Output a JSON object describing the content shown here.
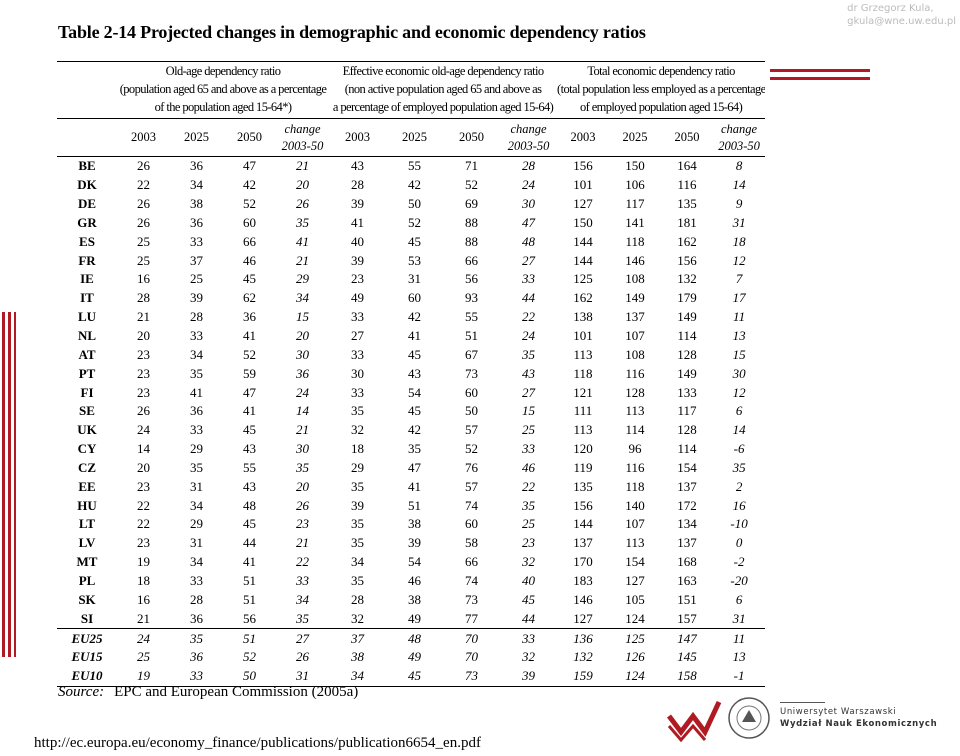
{
  "author": {
    "name": "dr Grzegorz Kula,",
    "email": "gkula@wne.uw.edu.pl"
  },
  "title": "Table 2-14 Projected changes in demographic and economic dependency ratios",
  "table": {
    "groups": [
      {
        "title": "Old-age dependency ratio",
        "note": [
          "(population aged 65 and above as a percentage",
          "of the population aged 15-64*)"
        ]
      },
      {
        "title": "Effective economic old-age dependency ratio",
        "note": [
          "(non active population aged 65 and above as",
          "a percentage of employed population aged 15-64)"
        ]
      },
      {
        "title": "Total economic dependency ratio",
        "note": [
          "(total population less employed as a percentage",
          "of employed population aged 15-64)"
        ]
      }
    ],
    "columns": [
      "2003",
      "2025",
      "2050",
      [
        "change",
        "2003-50"
      ]
    ],
    "rows": [
      [
        "BE",
        "26",
        "36",
        "47",
        "21",
        "43",
        "55",
        "71",
        "28",
        "156",
        "150",
        "164",
        "8"
      ],
      [
        "DK",
        "22",
        "34",
        "42",
        "20",
        "28",
        "42",
        "52",
        "24",
        "101",
        "106",
        "116",
        "14"
      ],
      [
        "DE",
        "26",
        "38",
        "52",
        "26",
        "39",
        "50",
        "69",
        "30",
        "127",
        "117",
        "135",
        "9"
      ],
      [
        "GR",
        "26",
        "36",
        "60",
        "35",
        "41",
        "52",
        "88",
        "47",
        "150",
        "141",
        "181",
        "31"
      ],
      [
        "ES",
        "25",
        "33",
        "66",
        "41",
        "40",
        "45",
        "88",
        "48",
        "144",
        "118",
        "162",
        "18"
      ],
      [
        "FR",
        "25",
        "37",
        "46",
        "21",
        "39",
        "53",
        "66",
        "27",
        "144",
        "146",
        "156",
        "12"
      ],
      [
        "IE",
        "16",
        "25",
        "45",
        "29",
        "23",
        "31",
        "56",
        "33",
        "125",
        "108",
        "132",
        "7"
      ],
      [
        "IT",
        "28",
        "39",
        "62",
        "34",
        "49",
        "60",
        "93",
        "44",
        "162",
        "149",
        "179",
        "17"
      ],
      [
        "LU",
        "21",
        "28",
        "36",
        "15",
        "33",
        "42",
        "55",
        "22",
        "138",
        "137",
        "149",
        "11"
      ],
      [
        "NL",
        "20",
        "33",
        "41",
        "20",
        "27",
        "41",
        "51",
        "24",
        "101",
        "107",
        "114",
        "13"
      ],
      [
        "AT",
        "23",
        "34",
        "52",
        "30",
        "33",
        "45",
        "67",
        "35",
        "113",
        "108",
        "128",
        "15"
      ],
      [
        "PT",
        "23",
        "35",
        "59",
        "36",
        "30",
        "43",
        "73",
        "43",
        "118",
        "116",
        "149",
        "30"
      ],
      [
        "FI",
        "23",
        "41",
        "47",
        "24",
        "33",
        "54",
        "60",
        "27",
        "121",
        "128",
        "133",
        "12"
      ],
      [
        "SE",
        "26",
        "36",
        "41",
        "14",
        "35",
        "45",
        "50",
        "15",
        "111",
        "113",
        "117",
        "6"
      ],
      [
        "UK",
        "24",
        "33",
        "45",
        "21",
        "32",
        "42",
        "57",
        "25",
        "113",
        "114",
        "128",
        "14"
      ],
      [
        "CY",
        "14",
        "29",
        "43",
        "30",
        "18",
        "35",
        "52",
        "33",
        "120",
        "96",
        "114",
        "-6"
      ],
      [
        "CZ",
        "20",
        "35",
        "55",
        "35",
        "29",
        "47",
        "76",
        "46",
        "119",
        "116",
        "154",
        "35"
      ],
      [
        "EE",
        "23",
        "31",
        "43",
        "20",
        "35",
        "41",
        "57",
        "22",
        "135",
        "118",
        "137",
        "2"
      ],
      [
        "HU",
        "22",
        "34",
        "48",
        "26",
        "39",
        "51",
        "74",
        "35",
        "156",
        "140",
        "172",
        "16"
      ],
      [
        "LT",
        "22",
        "29",
        "45",
        "23",
        "35",
        "38",
        "60",
        "25",
        "144",
        "107",
        "134",
        "-10"
      ],
      [
        "LV",
        "23",
        "31",
        "44",
        "21",
        "35",
        "39",
        "58",
        "23",
        "137",
        "113",
        "137",
        "0"
      ],
      [
        "MT",
        "19",
        "34",
        "41",
        "22",
        "34",
        "54",
        "66",
        "32",
        "170",
        "154",
        "168",
        "-2"
      ],
      [
        "PL",
        "18",
        "33",
        "51",
        "33",
        "35",
        "46",
        "74",
        "40",
        "183",
        "127",
        "163",
        "-20"
      ],
      [
        "SK",
        "16",
        "28",
        "51",
        "34",
        "28",
        "38",
        "73",
        "45",
        "146",
        "105",
        "151",
        "6"
      ],
      [
        "SI",
        "21",
        "36",
        "56",
        "35",
        "32",
        "49",
        "77",
        "44",
        "127",
        "124",
        "157",
        "31"
      ]
    ],
    "aggregate_rows": [
      [
        "EU25",
        "24",
        "35",
        "51",
        "27",
        "37",
        "48",
        "70",
        "33",
        "136",
        "125",
        "147",
        "11"
      ],
      [
        "EU15",
        "25",
        "36",
        "52",
        "26",
        "38",
        "49",
        "70",
        "32",
        "132",
        "126",
        "145",
        "13"
      ],
      [
        "EU10",
        "19",
        "33",
        "50",
        "31",
        "34",
        "45",
        "73",
        "39",
        "159",
        "124",
        "158",
        "-1"
      ]
    ]
  },
  "source": {
    "label": "Source:",
    "text": "EPC and European Commission (2005a)"
  },
  "url": "http://ec.europa.eu/economy_finance/publications/publication6654_en.pdf",
  "logo": {
    "university": "Uniwersytet Warszawski",
    "faculty": "Wydział Nauk Ekonomicznych"
  }
}
